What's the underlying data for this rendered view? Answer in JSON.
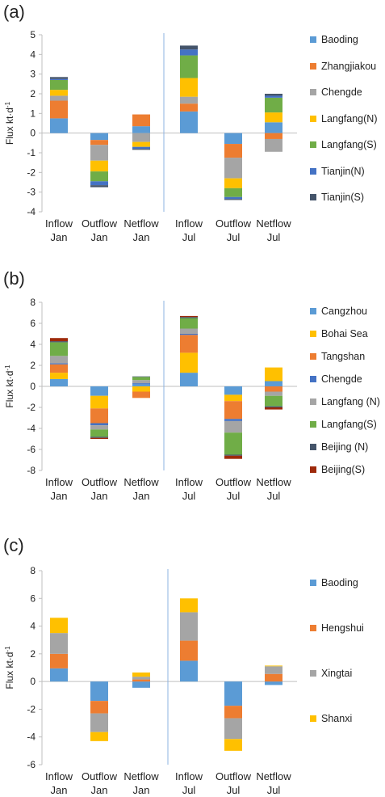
{
  "chart_data": [
    {
      "label": "(a)",
      "type": "bar",
      "stacked": true,
      "ylabel": "Flux kt·d",
      "ylabel_sup": "-1",
      "ylim": [
        -4,
        5
      ],
      "yticks": [
        -4,
        -3,
        -2,
        -1,
        0,
        1,
        2,
        3,
        4,
        5
      ],
      "categories": [
        [
          "Inflow",
          "Jan"
        ],
        [
          "Outflow",
          "Jan"
        ],
        [
          "Netflow",
          "Jan"
        ],
        [
          "Inflow",
          "Jul"
        ],
        [
          "Outflow",
          "Jul"
        ],
        [
          "Netflow",
          "Jul"
        ]
      ],
      "legend_position": "right",
      "series": [
        {
          "name": "Baoding",
          "color": "#5B9BD5",
          "values": [
            0.75,
            -0.35,
            0.35,
            1.1,
            -0.55,
            0.55
          ]
        },
        {
          "name": "Zhangjiakou",
          "color": "#ED7D31",
          "values": [
            0.9,
            -0.25,
            0.6,
            0.4,
            -0.7,
            -0.3
          ]
        },
        {
          "name": "Chengde",
          "color": "#A5A5A5",
          "values": [
            0.25,
            -0.8,
            -0.45,
            0.35,
            -1.05,
            -0.65
          ]
        },
        {
          "name": "Langfang(N)",
          "color": "#FFC000",
          "values": [
            0.3,
            -0.55,
            -0.25,
            0.95,
            -0.5,
            0.5
          ]
        },
        {
          "name": "Langfang(S)",
          "color": "#70AD47",
          "values": [
            0.5,
            -0.5,
            0.0,
            1.15,
            -0.45,
            0.75
          ]
        },
        {
          "name": "Tianjin(N)",
          "color": "#4472C4",
          "values": [
            0.05,
            -0.2,
            -0.1,
            0.3,
            -0.1,
            0.1
          ]
        },
        {
          "name": "Tianjin(S)",
          "color": "#44546A",
          "values": [
            0.1,
            -0.1,
            -0.05,
            0.2,
            -0.05,
            0.1
          ]
        }
      ]
    },
    {
      "label": "(b)",
      "type": "bar",
      "stacked": true,
      "ylabel": "Flux kt·d",
      "ylabel_sup": "-1",
      "ylim": [
        -8,
        8
      ],
      "yticks": [
        -8,
        -6,
        -4,
        -2,
        0,
        2,
        4,
        6,
        8
      ],
      "categories": [
        [
          "Inflow",
          "Jan"
        ],
        [
          "Outflow",
          "Jan"
        ],
        [
          "Netflow",
          "Jan"
        ],
        [
          "Inflow",
          "Jul"
        ],
        [
          "Outflow",
          "Jul"
        ],
        [
          "Netflow",
          "Jul"
        ]
      ],
      "legend_position": "right",
      "series": [
        {
          "name": "Cangzhou",
          "color": "#5B9BD5",
          "values": [
            0.7,
            -0.9,
            0.2,
            1.3,
            -0.8,
            0.5
          ]
        },
        {
          "name": "Bohai Sea",
          "color": "#FFC000",
          "values": [
            0.6,
            -1.2,
            -0.5,
            1.9,
            -0.6,
            1.3
          ]
        },
        {
          "name": "Tangshan",
          "color": "#ED7D31",
          "values": [
            0.8,
            -1.4,
            -0.6,
            1.7,
            -1.7,
            -0.5
          ]
        },
        {
          "name": "Chengde",
          "color": "#4472C4",
          "values": [
            0.1,
            -0.2,
            0.1,
            0.1,
            -0.2,
            0.0
          ]
        },
        {
          "name": "Langfang (N)",
          "color": "#A5A5A5",
          "values": [
            0.7,
            -0.4,
            0.3,
            0.5,
            -1.1,
            -0.4
          ]
        },
        {
          "name": "Langfang(S)",
          "color": "#70AD47",
          "values": [
            1.3,
            -0.7,
            0.3,
            1.0,
            -2.1,
            -1.0
          ]
        },
        {
          "name": "Beijing (N)",
          "color": "#44546A",
          "values": [
            0.1,
            -0.1,
            0.05,
            0.1,
            -0.1,
            -0.1
          ]
        },
        {
          "name": "Beijing(S)",
          "color": "#9E2A0B",
          "values": [
            0.3,
            -0.1,
            0.0,
            0.1,
            -0.3,
            -0.2
          ]
        }
      ]
    },
    {
      "label": "(c)",
      "type": "bar",
      "stacked": true,
      "ylabel": "Flux kt·d",
      "ylabel_sup": "-1",
      "ylim": [
        -6,
        8
      ],
      "yticks": [
        -6,
        -4,
        -2,
        0,
        2,
        4,
        6,
        8
      ],
      "categories": [
        [
          "Inflow",
          "Jan"
        ],
        [
          "Outflow",
          "Jan"
        ],
        [
          "Netflow",
          "Jan"
        ],
        [
          "Inflow",
          "Jul"
        ],
        [
          "Outflow",
          "Jul"
        ],
        [
          "Netflow",
          "Jul"
        ]
      ],
      "legend_position": "right",
      "series": [
        {
          "name": "Baoding",
          "color": "#5B9BD5",
          "values": [
            0.95,
            -1.4,
            -0.45,
            1.5,
            -1.75,
            -0.25
          ]
        },
        {
          "name": "Hengshui",
          "color": "#ED7D31",
          "values": [
            1.05,
            -0.9,
            0.15,
            1.45,
            -0.9,
            0.55
          ]
        },
        {
          "name": "Xingtai",
          "color": "#A5A5A5",
          "values": [
            1.5,
            -1.35,
            0.2,
            2.05,
            -1.5,
            0.55
          ]
        },
        {
          "name": "Shanxi",
          "color": "#FFC000",
          "values": [
            1.1,
            -0.65,
            0.3,
            1.0,
            -0.85,
            0.05
          ]
        }
      ]
    }
  ]
}
